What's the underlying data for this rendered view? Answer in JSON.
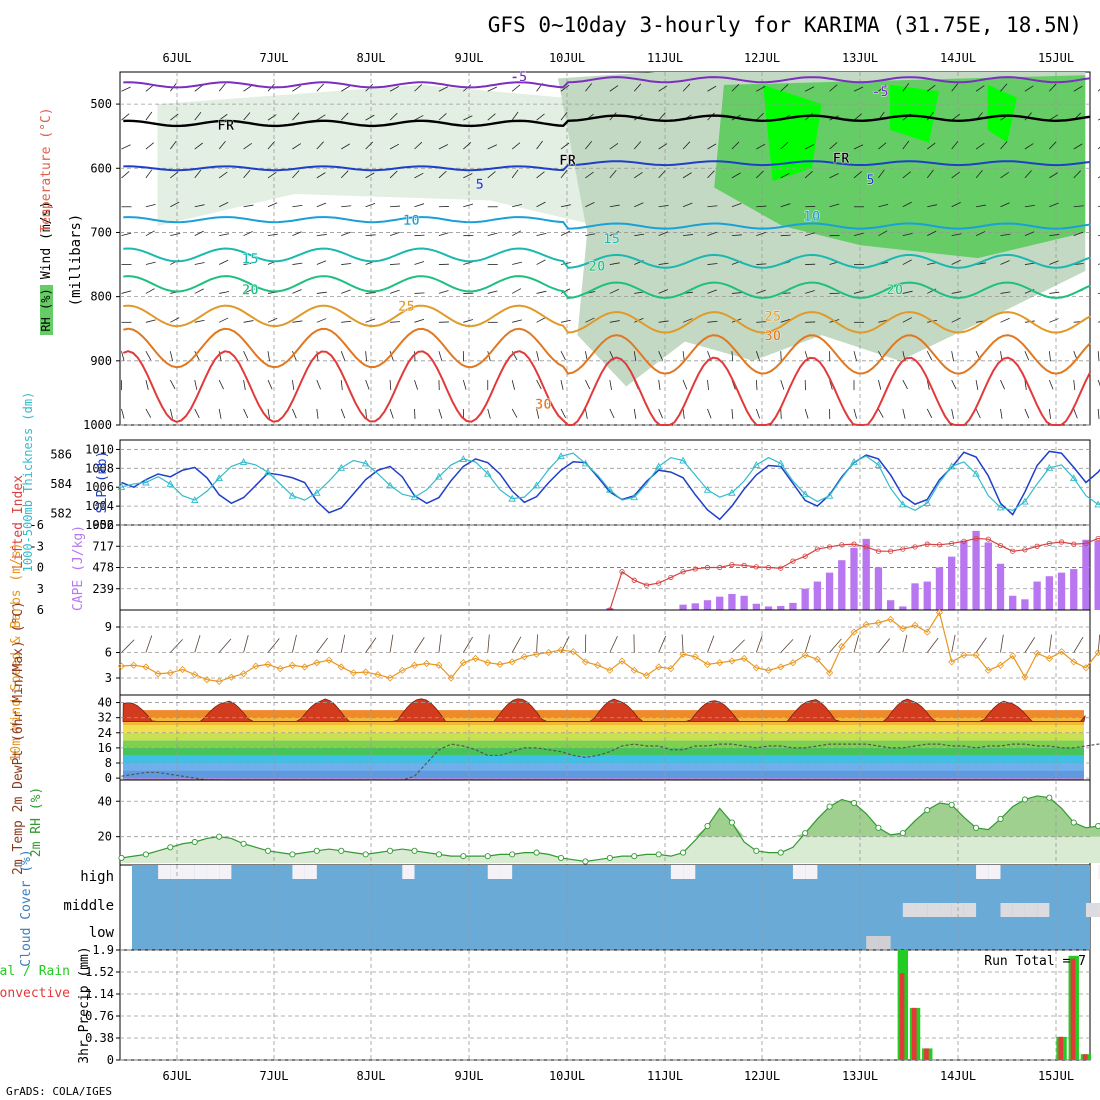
{
  "header": {
    "title": "GFS 0~10day 3-hourly for KARIMA (31.75E, 18.5N)",
    "credit": "GrADS: COLA/IGES"
  },
  "colors": {
    "temp_contour": "#7b2fbf",
    "freezing": "#000000",
    "rh_light": "#e2efe2",
    "rh_mid": "#c4d9c4",
    "rh_green": "#66cc66",
    "rh_bright": "#00ff00",
    "slp_line": "#1f3fc8",
    "thickness_line": "#33bbcc",
    "lifted_index": "#d84040",
    "cape_bar": "#b877f0",
    "wind_speed": "#e8961e",
    "rh2m": "#339933",
    "cloud": "#6aaad6",
    "precip_total": "#22cc22",
    "precip_conv": "#e23a3a"
  },
  "chart_data": [
    {
      "panel": "upper-air",
      "type": "heatmap",
      "x_dates": [
        "6JUL",
        "7JUL",
        "8JUL",
        "9JUL",
        "10JUL",
        "11JUL",
        "12JUL",
        "13JUL",
        "14JUL",
        "15JUL"
      ],
      "ylabel_parts": [
        "Wind (m/s)",
        "Temperature (°C)",
        "(millibars)"
      ],
      "rh_legend": "RH (%)",
      "y_ticks": [
        "500",
        "600",
        "700",
        "800",
        "900",
        "1000"
      ],
      "contour_labels": [
        {
          "text": "-5",
          "day": 3.5,
          "p": 465,
          "color": "#7b2fbf"
        },
        {
          "text": "-5",
          "day": 7.2,
          "p": 488,
          "color": "#7b2fbf"
        },
        {
          "text": "FR",
          "day": 0.5,
          "p": 540,
          "color": "#000000"
        },
        {
          "text": "FR",
          "day": 4.0,
          "p": 595,
          "color": "#000000"
        },
        {
          "text": "FR",
          "day": 6.8,
          "p": 592,
          "color": "#000000"
        },
        {
          "text": "5",
          "day": 3.1,
          "p": 632,
          "color": "#1f3fc8"
        },
        {
          "text": "5",
          "day": 7.1,
          "p": 625,
          "color": "#1f3fc8"
        },
        {
          "text": "10",
          "day": 2.4,
          "p": 688,
          "color": "#1aa0d8"
        },
        {
          "text": "10",
          "day": 6.5,
          "p": 682,
          "color": "#1aa0d8"
        },
        {
          "text": "15",
          "day": 0.75,
          "p": 748,
          "color": "#1bb8b0"
        },
        {
          "text": "15",
          "day": 4.45,
          "p": 717,
          "color": "#1bb8b0"
        },
        {
          "text": "20",
          "day": 0.75,
          "p": 797,
          "color": "#1fbf7f"
        },
        {
          "text": "20",
          "day": 4.3,
          "p": 760,
          "color": "#1fbf7f"
        },
        {
          "text": "20",
          "day": 7.35,
          "p": 797,
          "color": "#1fbf7f"
        },
        {
          "text": "25",
          "day": 2.35,
          "p": 822,
          "color": "#e09a2a"
        },
        {
          "text": "25",
          "day": 6.1,
          "p": 838,
          "color": "#e09a2a"
        },
        {
          "text": "30",
          "day": 6.1,
          "p": 868,
          "color": "#e07822"
        },
        {
          "text": "30",
          "day": 3.75,
          "p": 975,
          "color": "#e07822"
        }
      ]
    },
    {
      "panel": "slp-thickness",
      "type": "line",
      "ylabel": "SLP (mb)",
      "ylabel2": "1000-500mb Thickness (dm)",
      "slp_ticks": [
        "1002",
        "1004",
        "1006",
        "1008",
        "1010"
      ],
      "thick_ticks": [
        "582",
        "584",
        "586"
      ],
      "slp_range": [
        1002,
        1011
      ],
      "series": [
        {
          "name": "SLP",
          "values": [
            1006.5,
            1006.0,
            1006.8,
            1007.4,
            1007.1,
            1007.8,
            1008.1,
            1007.0,
            1005.2,
            1004.3,
            1004.9,
            1006.2,
            1007.5,
            1007.3,
            1007.0,
            1006.5,
            1004.5,
            1003.3,
            1003.8,
            1005.3,
            1006.8,
            1007.8,
            1008.2,
            1007.1,
            1005.1,
            1004.3,
            1004.9,
            1006.7,
            1008.2,
            1009.0,
            1008.6,
            1007.4,
            1005.6,
            1004.4,
            1005.0,
            1006.5,
            1007.8,
            1008.7,
            1008.6,
            1007.1,
            1005.5,
            1004.7,
            1005.1,
            1006.6,
            1007.8,
            1007.6,
            1007.0,
            1005.2,
            1003.6,
            1002.6,
            1004.0,
            1005.8,
            1007.3,
            1008.3,
            1008.2,
            1006.4,
            1004.6,
            1004.0,
            1005.2,
            1007.1,
            1008.6,
            1009.4,
            1009.0,
            1007.3,
            1005.1,
            1004.2,
            1004.7,
            1006.8,
            1008.1,
            1009.7,
            1009.2,
            1007.2,
            1004.3,
            1003.1,
            1005.5,
            1008.3,
            1009.8,
            1009.6,
            1008.1,
            1006.5,
            1007.6,
            1009.2,
            1008.1,
            1006.9,
            1006.6,
            1008.8,
            1009.4,
            1008.1,
            1006.3,
            1006.0,
            1008.0,
            1009.1,
            1008.7,
            1007.1,
            1006.1,
            1007.5,
            1008.9,
            1008.3,
            1007.2,
            1007.4,
            1008.2,
            1009.6,
            1011.0
          ]
        },
        {
          "name": "Thickness",
          "values": [
            583.8,
            584.0,
            584.1,
            584.5,
            584.0,
            583.2,
            582.9,
            583.5,
            584.4,
            585.2,
            585.5,
            585.3,
            584.8,
            584.0,
            583.2,
            582.9,
            583.4,
            584.2,
            585.1,
            585.6,
            585.4,
            584.7,
            583.9,
            583.3,
            583.1,
            583.6,
            584.5,
            585.3,
            585.7,
            585.5,
            584.7,
            583.6,
            583.0,
            583.1,
            583.9,
            585.0,
            585.9,
            586.1,
            585.4,
            584.6,
            583.6,
            582.9,
            583.1,
            584.0,
            585.2,
            585.8,
            585.6,
            584.6,
            583.6,
            583.1,
            583.4,
            584.2,
            585.3,
            585.8,
            585.4,
            584.2,
            583.3,
            582.8,
            583.2,
            584.4,
            585.5,
            585.9,
            585.3,
            583.7,
            582.6,
            582.2,
            582.7,
            584.1,
            585.2,
            585.5,
            584.7,
            583.2,
            582.4,
            582.2,
            582.8,
            584.0,
            585.1,
            585.3,
            584.4,
            583.2,
            582.6,
            582.9,
            583.7,
            584.5,
            583.9,
            583.3,
            583.5,
            583.8,
            583.4,
            583.3,
            583.6,
            583.2,
            583.5,
            583.7,
            582.9,
            583.4,
            583.9,
            583.1,
            582.4,
            582.0,
            582.6,
            582.1,
            581.8
          ]
        }
      ]
    },
    {
      "panel": "cape-li",
      "type": "bar",
      "ylabel": "CAPE (J/kg)",
      "ylabel2": "Lifted Index",
      "cape_ticks": [
        "239",
        "478",
        "717",
        "956"
      ],
      "li_ticks": [
        "6",
        "3",
        "0",
        "-3",
        "-6"
      ],
      "cape_max": 956,
      "li_range": [
        6,
        -6
      ],
      "cape_values": [
        0,
        0,
        0,
        0,
        0,
        0,
        0,
        0,
        0,
        0,
        0,
        0,
        0,
        0,
        0,
        0,
        0,
        0,
        0,
        0,
        0,
        0,
        0,
        0,
        0,
        0,
        0,
        0,
        0,
        0,
        0,
        0,
        0,
        0,
        0,
        0,
        0,
        0,
        0,
        0,
        0,
        0,
        0,
        0,
        0,
        0,
        0,
        0,
        0,
        0,
        0,
        0,
        0,
        0,
        0,
        0,
        0,
        0,
        0,
        0,
        0,
        0,
        0,
        0,
        0,
        0,
        0,
        0,
        0,
        0,
        0,
        0,
        0,
        0,
        0,
        0,
        0,
        0,
        0,
        0,
        0,
        0,
        0,
        0,
        0,
        0,
        0,
        0,
        0,
        0,
        0,
        0,
        0,
        0,
        0,
        0,
        0,
        0,
        0,
        0,
        0,
        0,
        0,
        0
      ],
      "cape_bars_by_index": {
        "40": 20,
        "41": 0,
        "42": 0,
        "43": 0,
        "44": 0,
        "45": 0,
        "46": 60,
        "47": 75,
        "48": 110,
        "49": 150,
        "50": 180,
        "51": 160,
        "52": 70,
        "53": 40,
        "54": 45,
        "55": 80,
        "56": 240,
        "57": 320,
        "58": 420,
        "59": 560,
        "60": 700,
        "61": 800,
        "62": 480,
        "63": 110,
        "64": 40,
        "65": 300,
        "66": 320,
        "67": 480,
        "68": 600,
        "69": 780,
        "70": 890,
        "71": 760,
        "72": 520,
        "73": 160,
        "74": 120,
        "75": 320,
        "76": 380,
        "77": 420,
        "78": 460,
        "79": 790,
        "80": 780,
        "81": 690,
        "82": 450,
        "83": 480,
        "84": 430,
        "85": 370,
        "86": 390,
        "87": 410,
        "88": 360,
        "89": 290,
        "90": 120,
        "91": 320
      },
      "li_values_by_index": {
        "40": 6,
        "41": 0.6,
        "42": 1.8,
        "43": 2.5,
        "44": 2.2,
        "45": 1.4,
        "46": 0.6,
        "47": 0.2,
        "48": 0.0,
        "49": 0.0,
        "50": -0.4,
        "51": -0.3,
        "52": -0.1,
        "53": 0.0,
        "54": 0.1,
        "55": -0.9,
        "56": -1.6,
        "57": -2.6,
        "58": -2.9,
        "59": -3.2,
        "60": -3.3,
        "61": -2.9,
        "62": -2.3,
        "63": -2.3,
        "64": -2.6,
        "65": -2.9,
        "66": -3.3,
        "67": -3.2,
        "68": -3.4,
        "69": -3.7,
        "70": -4.1,
        "71": -4.0,
        "72": -3.1,
        "73": -2.3,
        "74": -2.5,
        "75": -3.0,
        "76": -3.4,
        "77": -3.6,
        "78": -3.3,
        "79": -3.4,
        "80": -4.1,
        "81": -3.9,
        "82": -3.8,
        "83": -3.6,
        "84": -3.5,
        "85": -3.0,
        "86": -3.3,
        "87": -3.6,
        "88": -3.1,
        "89": -2.8,
        "90": -2.2,
        "91": -2.9,
        "92": -2.6,
        "93": -1.1,
        "94": -0.2,
        "95": 0.3,
        "96": 0.1,
        "97": -0.4
      }
    },
    {
      "panel": "wind10m",
      "type": "line",
      "ylabel": "10m Wind Speed & Barbs (m/s)",
      "y_ticks": [
        "3",
        "6",
        "9"
      ],
      "y_range": [
        1,
        11
      ],
      "values": [
        4.4,
        4.5,
        4.3,
        3.5,
        3.6,
        4.0,
        3.4,
        2.8,
        2.6,
        3.1,
        3.5,
        4.4,
        4.6,
        4.1,
        4.5,
        4.3,
        4.8,
        5.1,
        4.3,
        3.6,
        3.7,
        3.4,
        3.0,
        3.9,
        4.5,
        4.7,
        4.5,
        3.0,
        4.8,
        5.3,
        4.8,
        4.6,
        4.9,
        5.5,
        5.8,
        6.0,
        6.3,
        6.1,
        4.9,
        4.5,
        3.9,
        5.0,
        3.9,
        3.3,
        4.3,
        4.1,
        5.8,
        5.5,
        4.6,
        4.8,
        5.0,
        5.3,
        4.2,
        3.9,
        4.3,
        4.8,
        5.7,
        5.2,
        3.6,
        6.7,
        8.4,
        9.3,
        9.5,
        9.9,
        8.8,
        9.2,
        8.4,
        10.7,
        4.9,
        5.7,
        5.7,
        3.9,
        4.5,
        5.6,
        3.1,
        5.9,
        5.3,
        6.1,
        4.9,
        4.2,
        6.0,
        5.5,
        4.5,
        5.3,
        2.2,
        6.5,
        5.0,
        5.3,
        5.5,
        4.7,
        5.6,
        5.0,
        6.6,
        3.8,
        3.4,
        1.9,
        6.3,
        5.5,
        4.8,
        2.9,
        4.7,
        3.3,
        4.9
      ]
    },
    {
      "panel": "temp2m",
      "type": "area",
      "ylabel": "2m Temp 2m DewPt (6hr Min/Max) (°C)",
      "y_ticks": [
        "0",
        "8",
        "16",
        "24",
        "32",
        "40"
      ],
      "y_range": [
        -1,
        44
      ],
      "temp_max_by_day": [
        40,
        41,
        42,
        42,
        42,
        41,
        41,
        42,
        41,
        40
      ],
      "temp_min": 30,
      "dewpoint_values": [
        1,
        2,
        3,
        3,
        2,
        1,
        0,
        -1,
        -1,
        -2,
        -2,
        -2,
        -3,
        -3,
        -3,
        -3,
        -2,
        -2,
        -2,
        -2,
        -2,
        -2,
        -2,
        -1,
        1,
        8,
        15,
        18,
        17,
        15,
        12,
        12,
        14,
        16,
        16,
        15,
        14,
        12,
        11,
        12,
        14,
        17,
        18,
        17,
        17,
        15,
        15,
        17,
        17,
        18,
        18,
        17,
        16,
        17,
        17,
        16,
        16,
        17,
        18,
        18,
        18,
        18,
        17,
        16,
        16,
        17,
        18,
        18,
        17,
        17,
        16,
        17,
        17,
        18,
        18,
        17,
        17,
        16,
        16,
        17,
        18,
        18,
        17,
        17,
        16,
        16,
        17,
        17,
        17,
        17,
        16,
        16,
        17,
        17,
        16,
        16,
        17,
        17,
        17,
        16,
        16,
        17,
        17
      ]
    },
    {
      "panel": "rh2m",
      "type": "area",
      "ylabel": "2m RH (%)",
      "y_ticks": [
        "20",
        "40"
      ],
      "y_range": [
        4,
        52
      ],
      "values": [
        8,
        9,
        10,
        12,
        14,
        16,
        17,
        19,
        20,
        19,
        16,
        14,
        12,
        11,
        10,
        11,
        12,
        13,
        12,
        11,
        10,
        11,
        12,
        13,
        12,
        11,
        10,
        9,
        9,
        9,
        9,
        10,
        10,
        11,
        11,
        10,
        8,
        7,
        6,
        7,
        8,
        9,
        9,
        10,
        10,
        9,
        11,
        18,
        26,
        36,
        28,
        17,
        12,
        11,
        11,
        14,
        22,
        30,
        37,
        41,
        39,
        33,
        25,
        21,
        22,
        29,
        35,
        39,
        38,
        31,
        25,
        24,
        30,
        37,
        41,
        43,
        42,
        36,
        28,
        25,
        26,
        34,
        42,
        47,
        40,
        30,
        24,
        23,
        29,
        36,
        42,
        45,
        42,
        35,
        28,
        25,
        23,
        26,
        33,
        40,
        43,
        41,
        37
      ]
    },
    {
      "panel": "cloud",
      "type": "heatmap",
      "ylabel": "Cloud Cover (%)",
      "levels": [
        "high",
        "middle",
        "low"
      ]
    },
    {
      "panel": "precip",
      "type": "bar",
      "ylabel": "3hr Precip (mm)",
      "legend": [
        "Total / Rain",
        "Convective"
      ],
      "y_ticks": [
        "0",
        "0.38",
        "0.76",
        "1.14",
        "1.52",
        "1.9"
      ],
      "y_max": 1.9,
      "run_total": "Run Total = 7",
      "bars": [
        {
          "i": 64,
          "total": 1.9,
          "conv": 1.5
        },
        {
          "i": 65,
          "total": 0.9,
          "conv": 0.9
        },
        {
          "i": 66,
          "total": 0.2,
          "conv": 0.2
        },
        {
          "i": 77,
          "total": 0.4,
          "conv": 0.4
        },
        {
          "i": 78,
          "total": 1.8,
          "conv": 1.75
        },
        {
          "i": 79,
          "total": 0.1,
          "conv": 0.1
        },
        {
          "i": 88,
          "total": 0.65,
          "conv": 0.6
        },
        {
          "i": 89,
          "total": 0.9,
          "conv": 0.9
        },
        {
          "i": 90,
          "total": 0.1,
          "conv": 0.1
        },
        {
          "i": 98,
          "total": 0.35,
          "conv": 0.3
        }
      ]
    }
  ]
}
